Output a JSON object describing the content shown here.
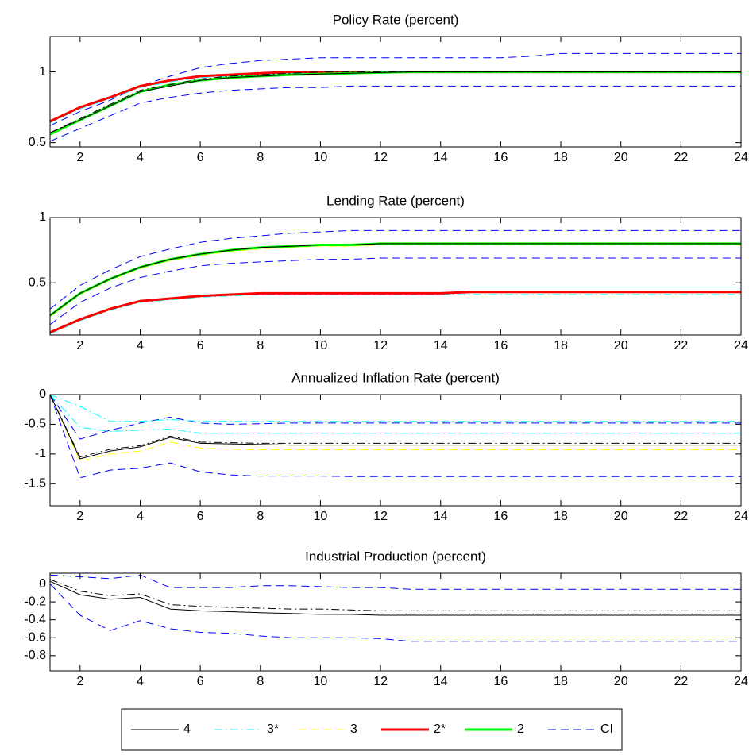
{
  "chart_data": [
    {
      "type": "line",
      "title": "Policy Rate (percent)",
      "x": [
        1,
        2,
        3,
        4,
        5,
        6,
        7,
        8,
        9,
        10,
        11,
        12,
        13,
        14,
        15,
        16,
        17,
        18,
        19,
        20,
        21,
        22,
        23,
        24
      ],
      "xlim": [
        1,
        24
      ],
      "xticks": [
        2,
        4,
        6,
        8,
        10,
        12,
        14,
        16,
        18,
        20,
        22,
        24
      ],
      "ylim": [
        0.47,
        1.25
      ],
      "yticks": [
        0.5,
        1
      ],
      "series": [
        {
          "name": "CI",
          "color": "#0000ff",
          "dash": "dash",
          "width": 1,
          "values": [
            0.62,
            0.72,
            0.8,
            0.9,
            0.97,
            1.03,
            1.06,
            1.08,
            1.09,
            1.1,
            1.1,
            1.1,
            1.1,
            1.1,
            1.1,
            1.1,
            1.11,
            1.13,
            1.13,
            1.13,
            1.13,
            1.13,
            1.13,
            1.13
          ]
        },
        {
          "name": "CI",
          "color": "#0000ff",
          "dash": "dash",
          "width": 1,
          "values": [
            0.51,
            0.6,
            0.69,
            0.78,
            0.82,
            0.85,
            0.87,
            0.88,
            0.89,
            0.89,
            0.9,
            0.9,
            0.9,
            0.9,
            0.9,
            0.9,
            0.9,
            0.9,
            0.9,
            0.9,
            0.9,
            0.9,
            0.9,
            0.9
          ]
        },
        {
          "name": "3*",
          "color": "#00ffff",
          "dash": "dashdot",
          "width": 1,
          "values": [
            0.64,
            0.74,
            0.81,
            0.89,
            0.93,
            0.96,
            0.97,
            0.98,
            0.99,
            0.99,
            1,
            1,
            1,
            1,
            1,
            1,
            1,
            1,
            1,
            1,
            1,
            1,
            1,
            1
          ]
        },
        {
          "name": "2*",
          "color": "#ff0000",
          "dash": "solid",
          "width": 3,
          "values": [
            0.65,
            0.75,
            0.82,
            0.9,
            0.94,
            0.97,
            0.98,
            0.99,
            1,
            1,
            1,
            1,
            1,
            1,
            1,
            1,
            1,
            1,
            1,
            1,
            1,
            1,
            1,
            1
          ]
        },
        {
          "name": "2",
          "color": "#00ff00",
          "dash": "solid",
          "width": 3,
          "values": [
            0.56,
            0.66,
            0.76,
            0.86,
            0.91,
            0.94,
            0.96,
            0.97,
            0.98,
            0.985,
            0.99,
            0.995,
            1,
            1,
            1,
            1,
            1,
            1,
            1,
            1,
            1,
            1,
            1,
            1
          ]
        },
        {
          "name": "4",
          "color": "#000000",
          "dash": "solid",
          "width": 1,
          "values": [
            0.57,
            0.66,
            0.76,
            0.86,
            0.9,
            0.94,
            0.96,
            0.97,
            0.98,
            0.985,
            0.99,
            0.995,
            1,
            1,
            1,
            1,
            1,
            1,
            1,
            1,
            1,
            1,
            1,
            1
          ]
        },
        {
          "name": "4",
          "color": "#000000",
          "dash": "dashdot",
          "width": 1,
          "values": [
            0.57,
            0.67,
            0.77,
            0.87,
            0.91,
            0.95,
            0.97,
            0.98,
            0.99,
            1,
            1,
            1,
            1,
            1,
            1,
            1,
            1,
            1,
            1,
            1,
            1,
            1,
            1,
            1
          ]
        }
      ]
    },
    {
      "type": "line",
      "title": "Lending Rate (percent)",
      "x": [
        1,
        2,
        3,
        4,
        5,
        6,
        7,
        8,
        9,
        10,
        11,
        12,
        13,
        14,
        15,
        16,
        17,
        18,
        19,
        20,
        21,
        22,
        23,
        24
      ],
      "xlim": [
        1,
        24
      ],
      "xticks": [
        2,
        4,
        6,
        8,
        10,
        12,
        14,
        16,
        18,
        20,
        22,
        24
      ],
      "ylim": [
        0.1,
        1
      ],
      "yticks": [
        0.5,
        1
      ],
      "series": [
        {
          "name": "CI",
          "color": "#0000ff",
          "dash": "dash",
          "width": 1,
          "values": [
            0.3,
            0.48,
            0.6,
            0.7,
            0.76,
            0.81,
            0.84,
            0.86,
            0.88,
            0.89,
            0.9,
            0.9,
            0.9,
            0.9,
            0.9,
            0.9,
            0.9,
            0.9,
            0.9,
            0.9,
            0.9,
            0.9,
            0.9,
            0.9
          ]
        },
        {
          "name": "CI",
          "color": "#0000ff",
          "dash": "dash",
          "width": 1,
          "values": [
            0.18,
            0.35,
            0.46,
            0.54,
            0.59,
            0.63,
            0.65,
            0.66,
            0.67,
            0.68,
            0.68,
            0.69,
            0.69,
            0.69,
            0.69,
            0.69,
            0.69,
            0.69,
            0.69,
            0.69,
            0.69,
            0.69,
            0.69,
            0.69
          ]
        },
        {
          "name": "3",
          "color": "#ffff00",
          "dash": "dash",
          "width": 1,
          "values": [
            0.24,
            0.41,
            0.52,
            0.61,
            0.67,
            0.71,
            0.74,
            0.76,
            0.77,
            0.78,
            0.78,
            0.79,
            0.79,
            0.79,
            0.79,
            0.79,
            0.79,
            0.79,
            0.79,
            0.79,
            0.79,
            0.79,
            0.79,
            0.79
          ]
        },
        {
          "name": "2",
          "color": "#00ff00",
          "dash": "solid",
          "width": 3,
          "values": [
            0.25,
            0.42,
            0.53,
            0.62,
            0.68,
            0.72,
            0.75,
            0.77,
            0.78,
            0.79,
            0.79,
            0.8,
            0.8,
            0.8,
            0.8,
            0.8,
            0.8,
            0.8,
            0.8,
            0.8,
            0.8,
            0.8,
            0.8,
            0.8
          ]
        },
        {
          "name": "4",
          "color": "#000000",
          "dash": "solid",
          "width": 1,
          "values": [
            0.25,
            0.42,
            0.53,
            0.62,
            0.68,
            0.72,
            0.75,
            0.77,
            0.78,
            0.79,
            0.79,
            0.8,
            0.8,
            0.8,
            0.8,
            0.8,
            0.8,
            0.8,
            0.8,
            0.8,
            0.8,
            0.8,
            0.8,
            0.8
          ]
        },
        {
          "name": "3*",
          "color": "#00ffff",
          "dash": "dashdot",
          "width": 1,
          "values": [
            0.11,
            0.21,
            0.29,
            0.35,
            0.37,
            0.39,
            0.4,
            0.41,
            0.41,
            0.41,
            0.41,
            0.41,
            0.41,
            0.41,
            0.41,
            0.41,
            0.41,
            0.41,
            0.41,
            0.41,
            0.41,
            0.41,
            0.41,
            0.41
          ]
        },
        {
          "name": "2*",
          "color": "#ff0000",
          "dash": "solid",
          "width": 3,
          "values": [
            0.12,
            0.22,
            0.3,
            0.36,
            0.38,
            0.4,
            0.41,
            0.42,
            0.42,
            0.42,
            0.42,
            0.42,
            0.42,
            0.42,
            0.43,
            0.43,
            0.43,
            0.43,
            0.43,
            0.43,
            0.43,
            0.43,
            0.43,
            0.43
          ]
        }
      ]
    },
    {
      "type": "line",
      "title": "Annualized Inflation Rate (percent)",
      "x": [
        1,
        2,
        3,
        4,
        5,
        6,
        7,
        8,
        9,
        10,
        11,
        12,
        13,
        14,
        15,
        16,
        17,
        18,
        19,
        20,
        21,
        22,
        23,
        24
      ],
      "xlim": [
        1,
        24
      ],
      "xticks": [
        2,
        4,
        6,
        8,
        10,
        12,
        14,
        16,
        18,
        20,
        22,
        24
      ],
      "ylim": [
        -1.87,
        0
      ],
      "yticks": [
        -1.5,
        -1,
        -0.5,
        0
      ],
      "series": [
        {
          "name": "CI",
          "color": "#0000ff",
          "dash": "dash",
          "width": 1,
          "values": [
            0,
            -0.75,
            -0.6,
            -0.48,
            -0.38,
            -0.48,
            -0.5,
            -0.49,
            -0.48,
            -0.48,
            -0.48,
            -0.48,
            -0.48,
            -0.48,
            -0.48,
            -0.48,
            -0.48,
            -0.48,
            -0.48,
            -0.48,
            -0.48,
            -0.48,
            -0.48,
            -0.48
          ]
        },
        {
          "name": "CI",
          "color": "#0000ff",
          "dash": "dash",
          "width": 1,
          "values": [
            0,
            -1.4,
            -1.27,
            -1.24,
            -1.15,
            -1.3,
            -1.35,
            -1.37,
            -1.37,
            -1.37,
            -1.38,
            -1.38,
            -1.38,
            -1.38,
            -1.38,
            -1.38,
            -1.38,
            -1.38,
            -1.38,
            -1.38,
            -1.38,
            -1.38,
            -1.38,
            -1.38
          ]
        },
        {
          "name": "3*",
          "color": "#00ffff",
          "dash": "dashdot",
          "width": 1,
          "values": [
            0,
            -0.2,
            -0.45,
            -0.45,
            -0.42,
            -0.45,
            -0.45,
            -0.45,
            -0.45,
            -0.45,
            -0.45,
            -0.45,
            -0.45,
            -0.45,
            -0.45,
            -0.45,
            -0.45,
            -0.45,
            -0.45,
            -0.45,
            -0.45,
            -0.45,
            -0.45,
            -0.45
          ]
        },
        {
          "name": "3*",
          "color": "#00ffff",
          "dash": "dashdot",
          "width": 1,
          "values": [
            0,
            -0.55,
            -0.62,
            -0.6,
            -0.58,
            -0.65,
            -0.65,
            -0.65,
            -0.65,
            -0.65,
            -0.65,
            -0.65,
            -0.65,
            -0.65,
            -0.65,
            -0.65,
            -0.65,
            -0.65,
            -0.65,
            -0.65,
            -0.65,
            -0.65,
            -0.65,
            -0.65
          ]
        },
        {
          "name": "3",
          "color": "#ffff00",
          "dash": "dash",
          "width": 1,
          "values": [
            0,
            -1.12,
            -1,
            -0.95,
            -0.8,
            -0.9,
            -0.92,
            -0.93,
            -0.93,
            -0.93,
            -0.93,
            -0.93,
            -0.93,
            -0.93,
            -0.93,
            -0.93,
            -0.93,
            -0.93,
            -0.93,
            -0.93,
            -0.93,
            -0.93,
            -0.93,
            -0.93
          ]
        },
        {
          "name": "4",
          "color": "#000000",
          "dash": "solid",
          "width": 1,
          "values": [
            0,
            -1.08,
            -0.95,
            -0.88,
            -0.72,
            -0.82,
            -0.83,
            -0.84,
            -0.85,
            -0.85,
            -0.85,
            -0.85,
            -0.85,
            -0.85,
            -0.85,
            -0.85,
            -0.85,
            -0.85,
            -0.85,
            -0.85,
            -0.85,
            -0.85,
            -0.85,
            -0.85
          ]
        },
        {
          "name": "4",
          "color": "#000000",
          "dash": "dashdot",
          "width": 1,
          "values": [
            0,
            -1.05,
            -0.92,
            -0.86,
            -0.7,
            -0.8,
            -0.81,
            -0.82,
            -0.82,
            -0.82,
            -0.82,
            -0.82,
            -0.82,
            -0.82,
            -0.82,
            -0.82,
            -0.82,
            -0.82,
            -0.82,
            -0.82,
            -0.82,
            -0.82,
            -0.82,
            -0.82
          ]
        }
      ]
    },
    {
      "type": "line",
      "title": "Industrial Production (percent)",
      "x": [
        1,
        2,
        3,
        4,
        5,
        6,
        7,
        8,
        9,
        10,
        11,
        12,
        13,
        14,
        15,
        16,
        17,
        18,
        19,
        20,
        21,
        22,
        23,
        24
      ],
      "xlim": [
        1,
        24
      ],
      "xticks": [
        2,
        4,
        6,
        8,
        10,
        12,
        14,
        16,
        18,
        20,
        22,
        24
      ],
      "ylim": [
        -0.97,
        0.12
      ],
      "yticks": [
        -0.8,
        -0.6,
        -0.4,
        -0.2,
        0
      ],
      "series": [
        {
          "name": "CI",
          "color": "#0000ff",
          "dash": "dash",
          "width": 1,
          "values": [
            0.1,
            0.08,
            0.06,
            0.1,
            -0.04,
            -0.04,
            -0.04,
            -0.02,
            -0.02,
            -0.03,
            -0.04,
            -0.04,
            -0.06,
            -0.06,
            -0.06,
            -0.06,
            -0.06,
            -0.06,
            -0.06,
            -0.06,
            -0.06,
            -0.06,
            -0.06,
            -0.06
          ]
        },
        {
          "name": "CI",
          "color": "#0000ff",
          "dash": "dash",
          "width": 1,
          "values": [
            0,
            -0.35,
            -0.52,
            -0.41,
            -0.5,
            -0.54,
            -0.55,
            -0.58,
            -0.6,
            -0.6,
            -0.6,
            -0.61,
            -0.64,
            -0.64,
            -0.64,
            -0.64,
            -0.64,
            -0.64,
            -0.64,
            -0.64,
            -0.64,
            -0.64,
            -0.64,
            -0.64
          ]
        },
        {
          "name": "4",
          "color": "#000000",
          "dash": "solid",
          "width": 1,
          "values": [
            0.03,
            -0.12,
            -0.17,
            -0.15,
            -0.28,
            -0.3,
            -0.31,
            -0.32,
            -0.33,
            -0.34,
            -0.34,
            -0.35,
            -0.35,
            -0.35,
            -0.35,
            -0.35,
            -0.35,
            -0.35,
            -0.35,
            -0.35,
            -0.35,
            -0.35,
            -0.35,
            -0.35
          ]
        },
        {
          "name": "4",
          "color": "#000000",
          "dash": "dashdot",
          "width": 1,
          "values": [
            0.05,
            -0.08,
            -0.13,
            -0.11,
            -0.23,
            -0.25,
            -0.26,
            -0.27,
            -0.28,
            -0.28,
            -0.29,
            -0.3,
            -0.3,
            -0.3,
            -0.3,
            -0.3,
            -0.3,
            -0.3,
            -0.3,
            -0.3,
            -0.3,
            -0.3,
            -0.3,
            -0.3
          ]
        }
      ]
    }
  ],
  "legend": [
    {
      "name": "4",
      "color": "#000000",
      "dash": "solid",
      "width": 1
    },
    {
      "name": "3*",
      "color": "#00ffff",
      "dash": "dashdot",
      "width": 1
    },
    {
      "name": "3",
      "color": "#ffff00",
      "dash": "dash",
      "width": 1
    },
    {
      "name": "2*",
      "color": "#ff0000",
      "dash": "solid",
      "width": 3
    },
    {
      "name": "2",
      "color": "#00ff00",
      "dash": "solid",
      "width": 3
    },
    {
      "name": "CI",
      "color": "#0000ff",
      "dash": "dash",
      "width": 1
    }
  ]
}
